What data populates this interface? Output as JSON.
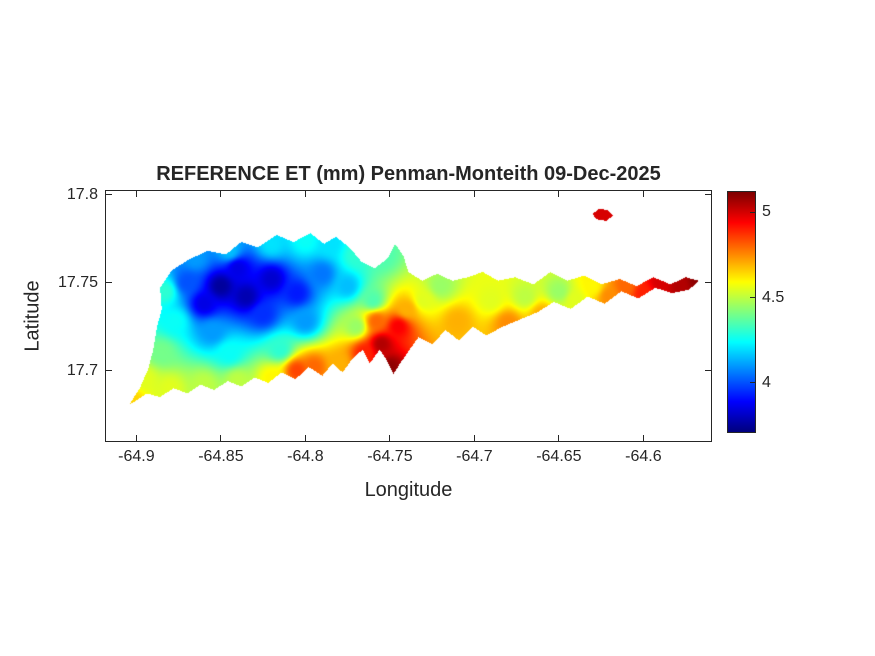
{
  "figure": {
    "background": "#ffffff",
    "text_color": "#262626"
  },
  "chart_data": {
    "type": "heatmap",
    "title": "REFERENCE ET (mm) Penman-Monteith 09-Dec-2025",
    "xlabel": "Longitude",
    "ylabel": "Latitude",
    "xlim": [
      -64.918,
      -64.56
    ],
    "ylim": [
      17.66,
      17.802
    ],
    "x_ticks": [
      -64.9,
      -64.85,
      -64.8,
      -64.75,
      -64.7,
      -64.65,
      -64.6
    ],
    "x_tick_labels": [
      "-64.9",
      "-64.85",
      "-64.8",
      "-64.75",
      "-64.7",
      "-64.65",
      "-64.6"
    ],
    "y_ticks": [
      17.7,
      17.75,
      17.8
    ],
    "y_tick_labels": [
      "17.7",
      "17.75",
      "17.8"
    ],
    "grid": false,
    "colorbar": {
      "position": "right",
      "colormap": "jet",
      "range": [
        3.71,
        5.12
      ],
      "ticks": [
        4,
        4.5,
        5
      ],
      "tick_labels": [
        "4",
        "4.5",
        "5"
      ]
    },
    "samples_format": [
      "lon",
      "lat",
      "et_mm"
    ],
    "samples": [
      [
        -64.85,
        17.748,
        3.75
      ],
      [
        -64.835,
        17.742,
        3.78
      ],
      [
        -64.82,
        17.752,
        3.82
      ],
      [
        -64.86,
        17.738,
        3.85
      ],
      [
        -64.84,
        17.758,
        3.85
      ],
      [
        -64.805,
        17.744,
        3.92
      ],
      [
        -64.825,
        17.732,
        3.95
      ],
      [
        -64.79,
        17.755,
        4.05
      ],
      [
        -64.775,
        17.748,
        4.15
      ],
      [
        -64.8,
        17.728,
        4.1
      ],
      [
        -64.855,
        17.722,
        4.1
      ],
      [
        -64.87,
        17.75,
        4.0
      ],
      [
        -64.883,
        17.745,
        4.3
      ],
      [
        -64.877,
        17.728,
        4.25
      ],
      [
        -64.885,
        17.71,
        4.4
      ],
      [
        -64.895,
        17.695,
        4.55
      ],
      [
        -64.902,
        17.683,
        4.65
      ],
      [
        -64.865,
        17.764,
        4.1
      ],
      [
        -64.845,
        17.768,
        4.15
      ],
      [
        -64.82,
        17.772,
        4.2
      ],
      [
        -64.8,
        17.774,
        4.25
      ],
      [
        -64.785,
        17.772,
        4.2
      ],
      [
        -64.77,
        17.765,
        4.3
      ],
      [
        -64.755,
        17.765,
        4.35
      ],
      [
        -64.76,
        17.74,
        4.35
      ],
      [
        -64.77,
        17.725,
        4.45
      ],
      [
        -64.88,
        17.69,
        4.55
      ],
      [
        -64.86,
        17.692,
        4.5
      ],
      [
        -64.84,
        17.694,
        4.5
      ],
      [
        -64.82,
        17.696,
        4.6
      ],
      [
        -64.845,
        17.71,
        4.25
      ],
      [
        -64.815,
        17.712,
        4.3
      ],
      [
        -64.805,
        17.7,
        4.85
      ],
      [
        -64.795,
        17.702,
        4.8
      ],
      [
        -64.78,
        17.704,
        4.7
      ],
      [
        -64.75,
        17.702,
        5.1
      ],
      [
        -64.755,
        17.715,
        5.05
      ],
      [
        -64.745,
        17.725,
        4.95
      ],
      [
        -64.74,
        17.735,
        4.7
      ],
      [
        -64.758,
        17.728,
        4.8
      ],
      [
        -64.765,
        17.71,
        4.9
      ],
      [
        -64.73,
        17.74,
        4.55
      ],
      [
        -64.72,
        17.748,
        4.45
      ],
      [
        -64.71,
        17.728,
        4.7
      ],
      [
        -64.69,
        17.74,
        4.55
      ],
      [
        -64.67,
        17.742,
        4.5
      ],
      [
        -64.65,
        17.745,
        4.45
      ],
      [
        -64.68,
        17.727,
        4.75
      ],
      [
        -64.66,
        17.732,
        4.7
      ],
      [
        -64.64,
        17.74,
        4.55
      ],
      [
        -64.63,
        17.748,
        4.6
      ],
      [
        -64.62,
        17.742,
        4.75
      ],
      [
        -64.61,
        17.748,
        4.8
      ],
      [
        -64.6,
        17.744,
        4.9
      ],
      [
        -64.59,
        17.75,
        5.0
      ],
      [
        -64.578,
        17.748,
        5.05
      ],
      [
        -64.568,
        17.751,
        5.1
      ],
      [
        -64.625,
        17.79,
        5.0
      ]
    ],
    "island_outline": [
      [
        -64.904,
        17.681
      ],
      [
        -64.898,
        17.69
      ],
      [
        -64.893,
        17.701
      ],
      [
        -64.89,
        17.712
      ],
      [
        -64.888,
        17.724
      ],
      [
        -64.885,
        17.735
      ],
      [
        -64.886,
        17.747
      ],
      [
        -64.879,
        17.757
      ],
      [
        -64.869,
        17.763
      ],
      [
        -64.858,
        17.768
      ],
      [
        -64.847,
        17.766
      ],
      [
        -64.838,
        17.773
      ],
      [
        -64.828,
        17.77
      ],
      [
        -64.817,
        17.777
      ],
      [
        -64.807,
        17.773
      ],
      [
        -64.797,
        17.778
      ],
      [
        -64.789,
        17.772
      ],
      [
        -64.782,
        17.776
      ],
      [
        -64.774,
        17.77
      ],
      [
        -64.767,
        17.762
      ],
      [
        -64.759,
        17.758
      ],
      [
        -64.751,
        17.764
      ],
      [
        -64.747,
        17.772
      ],
      [
        -64.742,
        17.765
      ],
      [
        -64.739,
        17.756
      ],
      [
        -64.731,
        17.751
      ],
      [
        -64.722,
        17.755
      ],
      [
        -64.713,
        17.751
      ],
      [
        -64.704,
        17.753
      ],
      [
        -64.695,
        17.756
      ],
      [
        -64.686,
        17.751
      ],
      [
        -64.676,
        17.753
      ],
      [
        -64.665,
        17.749
      ],
      [
        -64.655,
        17.756
      ],
      [
        -64.645,
        17.751
      ],
      [
        -64.635,
        17.754
      ],
      [
        -64.625,
        17.749
      ],
      [
        -64.614,
        17.752
      ],
      [
        -64.604,
        17.748
      ],
      [
        -64.594,
        17.753
      ],
      [
        -64.584,
        17.749
      ],
      [
        -64.575,
        17.753
      ],
      [
        -64.567,
        17.751
      ],
      [
        -64.573,
        17.746
      ],
      [
        -64.583,
        17.744
      ],
      [
        -64.593,
        17.747
      ],
      [
        -64.603,
        17.741
      ],
      [
        -64.613,
        17.745
      ],
      [
        -64.623,
        17.738
      ],
      [
        -64.633,
        17.742
      ],
      [
        -64.643,
        17.735
      ],
      [
        -64.653,
        17.739
      ],
      [
        -64.663,
        17.733
      ],
      [
        -64.673,
        17.729
      ],
      [
        -64.683,
        17.725
      ],
      [
        -64.693,
        17.72
      ],
      [
        -64.701,
        17.725
      ],
      [
        -64.709,
        17.717
      ],
      [
        -64.717,
        17.723
      ],
      [
        -64.725,
        17.715
      ],
      [
        -64.733,
        17.719
      ],
      [
        -64.739,
        17.711
      ],
      [
        -64.744,
        17.704
      ],
      [
        -64.748,
        17.698
      ],
      [
        -64.752,
        17.706
      ],
      [
        -64.756,
        17.712
      ],
      [
        -64.762,
        17.704
      ],
      [
        -64.766,
        17.712
      ],
      [
        -64.772,
        17.707
      ],
      [
        -64.778,
        17.699
      ],
      [
        -64.784,
        17.704
      ],
      [
        -64.79,
        17.697
      ],
      [
        -64.798,
        17.702
      ],
      [
        -64.806,
        17.695
      ],
      [
        -64.814,
        17.699
      ],
      [
        -64.822,
        17.693
      ],
      [
        -64.83,
        17.696
      ],
      [
        -64.838,
        17.691
      ],
      [
        -64.846,
        17.694
      ],
      [
        -64.854,
        17.689
      ],
      [
        -64.862,
        17.692
      ],
      [
        -64.87,
        17.687
      ],
      [
        -64.878,
        17.69
      ],
      [
        -64.886,
        17.685
      ],
      [
        -64.894,
        17.687
      ],
      [
        -64.9,
        17.683
      ]
    ],
    "islet_outline": [
      [
        -64.63,
        17.789
      ],
      [
        -64.626,
        17.792
      ],
      [
        -64.621,
        17.791
      ],
      [
        -64.618,
        17.788
      ],
      [
        -64.622,
        17.785
      ],
      [
        -64.628,
        17.786
      ]
    ]
  }
}
